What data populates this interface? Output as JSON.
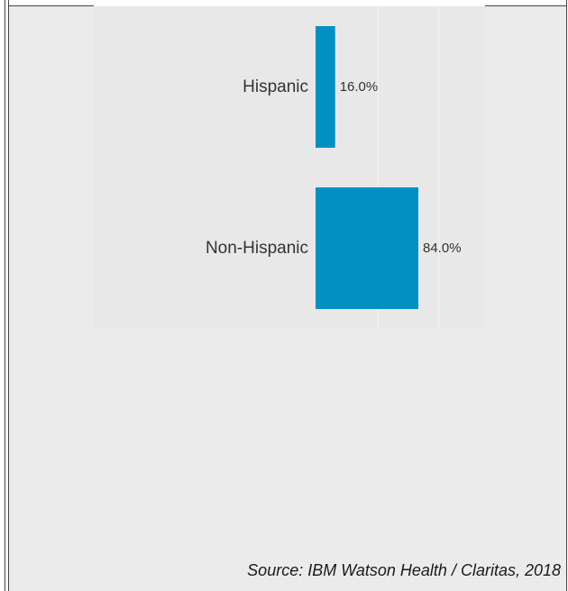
{
  "chart_data": {
    "type": "bar",
    "orientation": "horizontal",
    "categories": [
      "Hispanic",
      "Non-Hispanic"
    ],
    "values": [
      16.0,
      84.0
    ],
    "data_labels": [
      "16.0%",
      "84.0%"
    ],
    "title": "",
    "xlabel": "",
    "ylabel": "",
    "xlim": [
      0,
      100
    ],
    "grid": false,
    "bar_color": "#0091c3"
  },
  "source": "Source: IBM Watson Health / Claritas, 2018"
}
